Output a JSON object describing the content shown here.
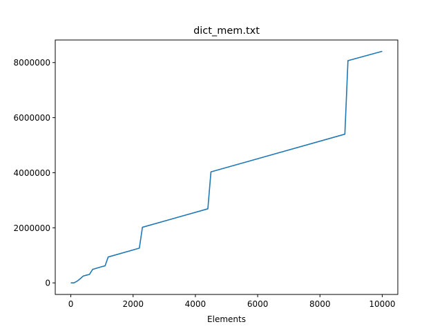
{
  "chart_data": {
    "type": "line",
    "title": "dict_mem.txt",
    "xlabel": "Elements",
    "ylabel": "",
    "xlim": [
      -500,
      10500
    ],
    "ylim": [
      -420000,
      8820000
    ],
    "xticks": [
      0,
      2000,
      4000,
      6000,
      8000,
      10000
    ],
    "xtick_labels": [
      "0",
      "2000",
      "4000",
      "6000",
      "8000",
      "10000"
    ],
    "yticks": [
      0,
      2000000,
      4000000,
      6000000,
      8000000
    ],
    "ytick_labels": [
      "0",
      "2000000",
      "4000000",
      "6000000",
      "8000000"
    ],
    "grid": false,
    "series": [
      {
        "color": "#1f77b4",
        "x": [
          0,
          100,
          200,
          300,
          400,
          500,
          600,
          700,
          1000,
          1100,
          1200,
          2200,
          2300,
          4400,
          4500,
          8800,
          8900,
          10000
        ],
        "y": [
          0,
          0,
          60000,
          150000,
          250000,
          280000,
          310000,
          490000,
          590000,
          620000,
          940000,
          1260000,
          2020000,
          2690000,
          4030000,
          5400000,
          8070000,
          8410000
        ]
      }
    ]
  }
}
